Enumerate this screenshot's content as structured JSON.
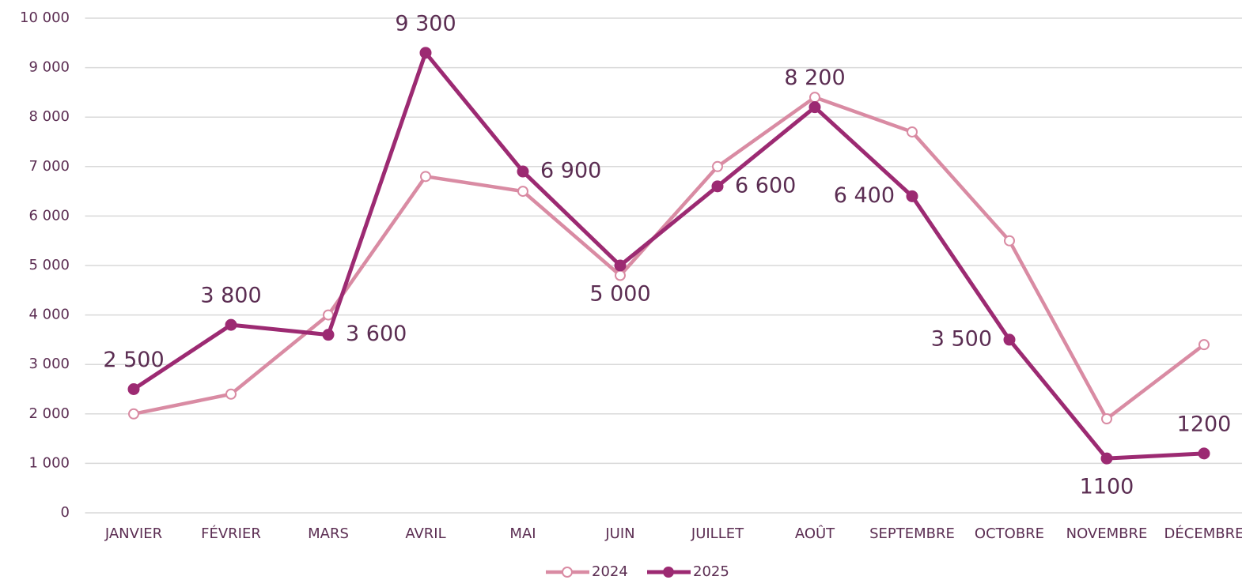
{
  "chart_data": {
    "type": "line",
    "categories": [
      "JANVIER",
      "FÉVRIER",
      "MARS",
      "AVRIL",
      "MAI",
      "JUIN",
      "JUILLET",
      "AOÛT",
      "SEPTEMBRE",
      "OCTOBRE",
      "NOVEMBRE",
      "DÉCEMBRE"
    ],
    "series": [
      {
        "name": "2024",
        "color": "#d98ba3",
        "values": [
          2000,
          2400,
          4000,
          6800,
          6500,
          4800,
          7000,
          8400,
          7700,
          5500,
          1900,
          3400
        ]
      },
      {
        "name": "2025",
        "color": "#9c2a72",
        "values": [
          2500,
          3800,
          3600,
          9300,
          6900,
          5000,
          6600,
          8200,
          6400,
          3500,
          1100,
          1200
        ],
        "value_labels": [
          "2 500",
          "3 800",
          "3 600",
          "9 300",
          "6 900",
          "5 000",
          "6 600",
          "8 200",
          "6 400",
          "3 500",
          "1100",
          "1200"
        ]
      }
    ],
    "ylim": [
      0,
      10000
    ],
    "yticks": [
      0,
      {
        "value": 1000,
        "label": "1 000"
      },
      {
        "value": 2000,
        "label": "2 000"
      },
      {
        "value": 3000,
        "label": "3 000"
      },
      {
        "value": 4000,
        "label": "4 000"
      },
      {
        "value": 5000,
        "label": "5 000"
      },
      {
        "value": 6000,
        "label": "6 000"
      },
      {
        "value": 7000,
        "label": "7 000"
      },
      {
        "value": 8000,
        "label": "8 000"
      },
      {
        "value": 9000,
        "label": "9 000"
      },
      {
        "value": 10000,
        "label": "10 000"
      }
    ],
    "grid": true,
    "legend": "bottom"
  }
}
